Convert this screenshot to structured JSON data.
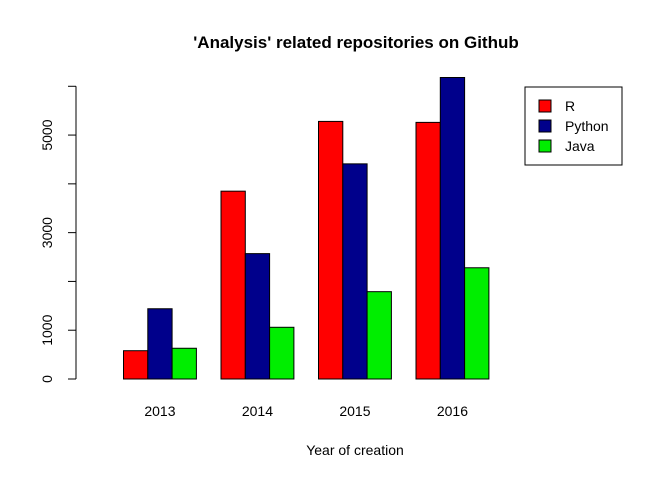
{
  "chart_data": {
    "type": "bar",
    "title": "'Analysis' related repositories on Github",
    "xlabel": "Year of creation",
    "ylabel": "",
    "categories": [
      "2013",
      "2014",
      "2015",
      "2016"
    ],
    "series": [
      {
        "name": "R",
        "color": "#FF0000",
        "values": [
          580,
          3850,
          5280,
          5260
        ]
      },
      {
        "name": "Python",
        "color": "#00008B",
        "values": [
          1440,
          2570,
          4410,
          6180
        ]
      },
      {
        "name": "Java",
        "color": "#00EE00",
        "values": [
          630,
          1060,
          1790,
          2280
        ]
      }
    ],
    "ylim": [
      0,
      6180
    ],
    "yticks": [
      0,
      1000,
      2000,
      3000,
      4000,
      5000,
      6000
    ],
    "ytick_labels": [
      "0",
      "1000",
      "",
      "3000",
      "",
      "5000",
      ""
    ],
    "legend_position": "top-right",
    "grid": false
  }
}
